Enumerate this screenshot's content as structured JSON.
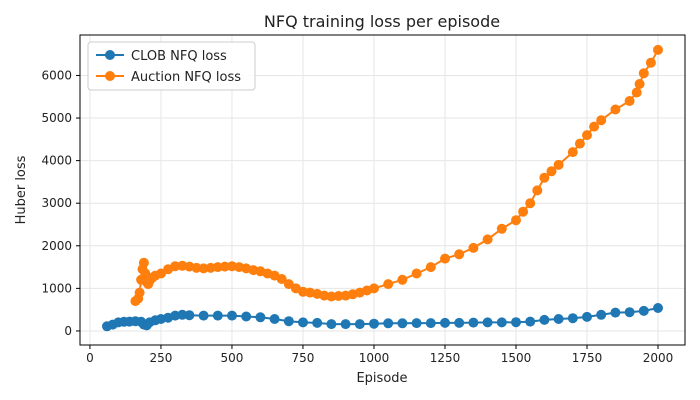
{
  "chart_data": {
    "type": "line",
    "title": "NFQ training loss per episode",
    "xlabel": "Episode",
    "ylabel": "Huber loss",
    "xlim": [
      -35,
      2095
    ],
    "ylim": [
      -330,
      6950
    ],
    "xticks": [
      0,
      250,
      500,
      750,
      1000,
      1250,
      1500,
      1750,
      2000
    ],
    "yticks": [
      0,
      1000,
      2000,
      3000,
      4000,
      5000,
      6000
    ],
    "grid": true,
    "legend_position": "upper-left",
    "series": [
      {
        "name": "CLOB NFQ loss",
        "color": "#1f77b4",
        "x": [
          60,
          80,
          100,
          120,
          140,
          160,
          180,
          190,
          200,
          210,
          230,
          250,
          275,
          300,
          325,
          350,
          400,
          450,
          500,
          550,
          600,
          650,
          700,
          750,
          800,
          850,
          900,
          950,
          1000,
          1050,
          1100,
          1150,
          1200,
          1250,
          1300,
          1350,
          1400,
          1450,
          1500,
          1550,
          1600,
          1650,
          1700,
          1750,
          1800,
          1850,
          1900,
          1950,
          2000
        ],
        "values": [
          110,
          150,
          200,
          215,
          220,
          230,
          215,
          150,
          130,
          200,
          250,
          280,
          310,
          360,
          380,
          370,
          360,
          360,
          360,
          340,
          320,
          280,
          230,
          200,
          190,
          160,
          160,
          160,
          170,
          180,
          180,
          185,
          185,
          190,
          190,
          195,
          200,
          200,
          205,
          220,
          260,
          280,
          300,
          330,
          380,
          430,
          440,
          470,
          540
        ]
      },
      {
        "name": "Auction NFQ loss",
        "color": "#ff7f0e",
        "x": [
          160,
          170,
          175,
          180,
          185,
          190,
          195,
          200,
          205,
          210,
          220,
          230,
          250,
          275,
          300,
          325,
          350,
          375,
          400,
          425,
          450,
          475,
          500,
          525,
          550,
          575,
          600,
          625,
          650,
          675,
          700,
          725,
          750,
          775,
          800,
          825,
          850,
          875,
          900,
          925,
          950,
          975,
          1000,
          1050,
          1100,
          1150,
          1200,
          1250,
          1300,
          1350,
          1400,
          1450,
          1500,
          1525,
          1550,
          1575,
          1600,
          1625,
          1650,
          1700,
          1725,
          1750,
          1775,
          1800,
          1850,
          1900,
          1925,
          1935,
          1950,
          1975,
          2000
        ],
        "values": [
          700,
          760,
          900,
          1200,
          1450,
          1600,
          1350,
          1150,
          1100,
          1180,
          1250,
          1300,
          1350,
          1450,
          1520,
          1530,
          1510,
          1480,
          1470,
          1480,
          1500,
          1510,
          1520,
          1500,
          1470,
          1430,
          1400,
          1350,
          1300,
          1220,
          1100,
          1000,
          920,
          900,
          870,
          830,
          810,
          820,
          830,
          860,
          900,
          950,
          1000,
          1100,
          1200,
          1350,
          1500,
          1700,
          1800,
          1950,
          2150,
          2400,
          2600,
          2800,
          3000,
          3300,
          3600,
          3750,
          3900,
          4200,
          4400,
          4600,
          4800,
          4950,
          5200,
          5400,
          5600,
          5800,
          6050,
          6300,
          6600
        ]
      }
    ]
  }
}
